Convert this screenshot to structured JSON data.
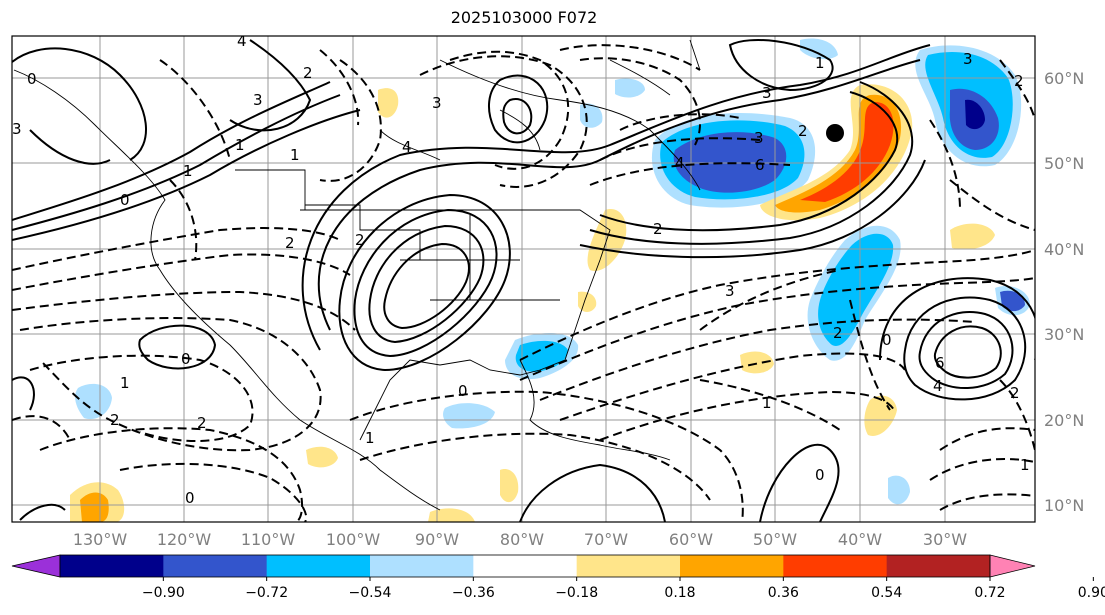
{
  "title": "2025103000 F072",
  "map": {
    "lat_labels": [
      "60°N",
      "50°N",
      "40°N",
      "30°N",
      "20°N",
      "10°N"
    ],
    "lon_labels": [
      "130°W",
      "120°W",
      "110°W",
      "100°W",
      "90°W",
      "80°W",
      "70°W",
      "60°W",
      "50°W",
      "40°W",
      "30°W"
    ],
    "contour_labels": [
      "4",
      "2",
      "3",
      "0",
      "1",
      "2",
      "3",
      "4",
      "1",
      "3",
      "2",
      "1",
      "0",
      "2",
      "3",
      "6",
      "2",
      "4",
      "1",
      "3",
      "3",
      "2",
      "3",
      "0",
      "2",
      "0",
      "6",
      "4",
      "2",
      "1",
      "2",
      "1",
      "0",
      "2",
      "1",
      "0",
      "0",
      "1"
    ]
  },
  "colorbar": {
    "ticks": [
      "−0.90",
      "−0.72",
      "−0.54",
      "−0.36",
      "−0.18",
      "0.18",
      "0.36",
      "0.54",
      "0.72",
      "0.90"
    ],
    "colors": [
      "#9b30d9",
      "#00008b",
      "#3355cc",
      "#00bfff",
      "#aee0ff",
      "#ffffff",
      "#ffe58a",
      "#ffa500",
      "#ff3d00",
      "#b22222",
      "#ff82b4"
    ]
  }
}
